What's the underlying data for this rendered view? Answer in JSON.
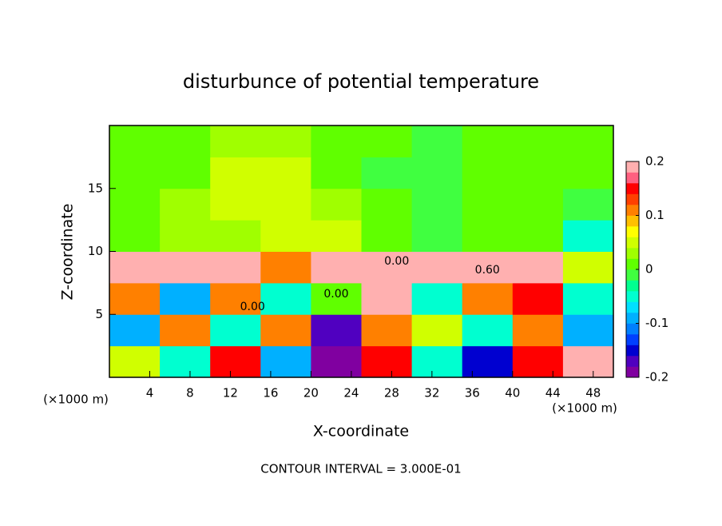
{
  "chart_data": {
    "type": "heatmap",
    "title": "disturbunce of potential temperature",
    "x_label": "X-coordinate",
    "y_label": "Z-coordinate",
    "x_unit": "(×1000 m)",
    "y_unit": "(×1000 m)",
    "footer": "CONTOUR INTERVAL = 3.000E-01",
    "xlim": [
      0,
      50
    ],
    "ylim": [
      0,
      20
    ],
    "xticks": [
      4,
      8,
      12,
      16,
      20,
      24,
      28,
      32,
      36,
      40,
      44,
      48
    ],
    "yticks": [
      5,
      10,
      15
    ],
    "x_bins": [
      0,
      5,
      10,
      15,
      20,
      25,
      30,
      35,
      40,
      45,
      50
    ],
    "y_bins": [
      0,
      2.5,
      5,
      7.5,
      10,
      12.5,
      15,
      17.5,
      20
    ],
    "values": [
      [
        0.05,
        -0.05,
        0.15,
        -0.1,
        -0.2,
        0.15,
        -0.05,
        -0.15,
        0.15,
        0.2
      ],
      [
        -0.1,
        0.1,
        -0.05,
        0.1,
        -0.18,
        0.12,
        0.05,
        -0.05,
        0.1,
        -0.1
      ],
      [
        0.1,
        -0.1,
        0.1,
        -0.05,
        0.0,
        0.2,
        -0.05,
        0.1,
        0.15,
        -0.05
      ],
      [
        0.2,
        0.2,
        0.2,
        0.1,
        0.2,
        0.2,
        0.2,
        0.2,
        0.2,
        0.05
      ],
      [
        0.02,
        0.03,
        0.03,
        0.04,
        0.05,
        0.01,
        -0.01,
        0.0,
        0.0,
        -0.05
      ],
      [
        0.02,
        0.03,
        0.04,
        0.05,
        0.03,
        0.0,
        -0.02,
        0.0,
        0.01,
        -0.02
      ],
      [
        0.01,
        0.02,
        0.04,
        0.04,
        0.02,
        -0.01,
        -0.02,
        0.01,
        0.0,
        0.0
      ],
      [
        0.01,
        0.02,
        0.03,
        0.03,
        0.02,
        0.0,
        -0.02,
        0.0,
        0.01,
        0.0
      ]
    ],
    "colorbar_lim": [
      -0.2,
      0.2
    ],
    "colorbar_ticks": [
      -0.2,
      -0.1,
      0,
      0.1,
      0.2
    ],
    "colormap": [
      "#8000a0",
      "#5000c0",
      "#0000d0",
      "#0040ff",
      "#0080ff",
      "#00b0ff",
      "#00e0ff",
      "#00ffd0",
      "#00ff90",
      "#40ff40",
      "#60ff00",
      "#a0ff00",
      "#d0ff00",
      "#ffff00",
      "#ffc000",
      "#ff8000",
      "#ff4000",
      "#ff0000",
      "#ff6080",
      "#ffb0b0"
    ],
    "annotations": [
      {
        "text": "0.00",
        "x": 28.5,
        "y": 9.2
      },
      {
        "text": "0.60",
        "x": 37.5,
        "y": 8.5
      },
      {
        "text": "0.00",
        "x": 22.5,
        "y": 6.6
      },
      {
        "text": "0.00",
        "x": 14.2,
        "y": 5.6
      }
    ]
  }
}
